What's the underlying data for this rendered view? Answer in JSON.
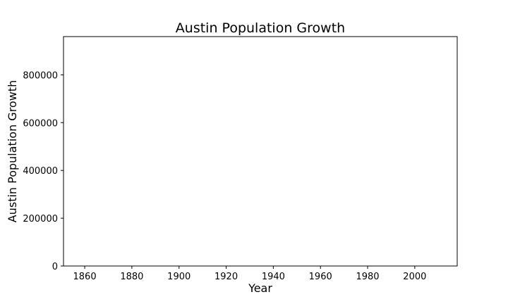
{
  "chart_data": {
    "type": "line",
    "title": "Austin Population Growth",
    "xlabel": "Year",
    "ylabel": "Austin Population Growth",
    "xlim": [
      1851,
      2018
    ],
    "ylim": [
      0,
      960000
    ],
    "xticks": [
      1860,
      1880,
      1900,
      1920,
      1940,
      1960,
      1980,
      2000
    ],
    "yticks": [
      0,
      200000,
      400000,
      600000,
      800000
    ],
    "grid": false,
    "series": []
  }
}
